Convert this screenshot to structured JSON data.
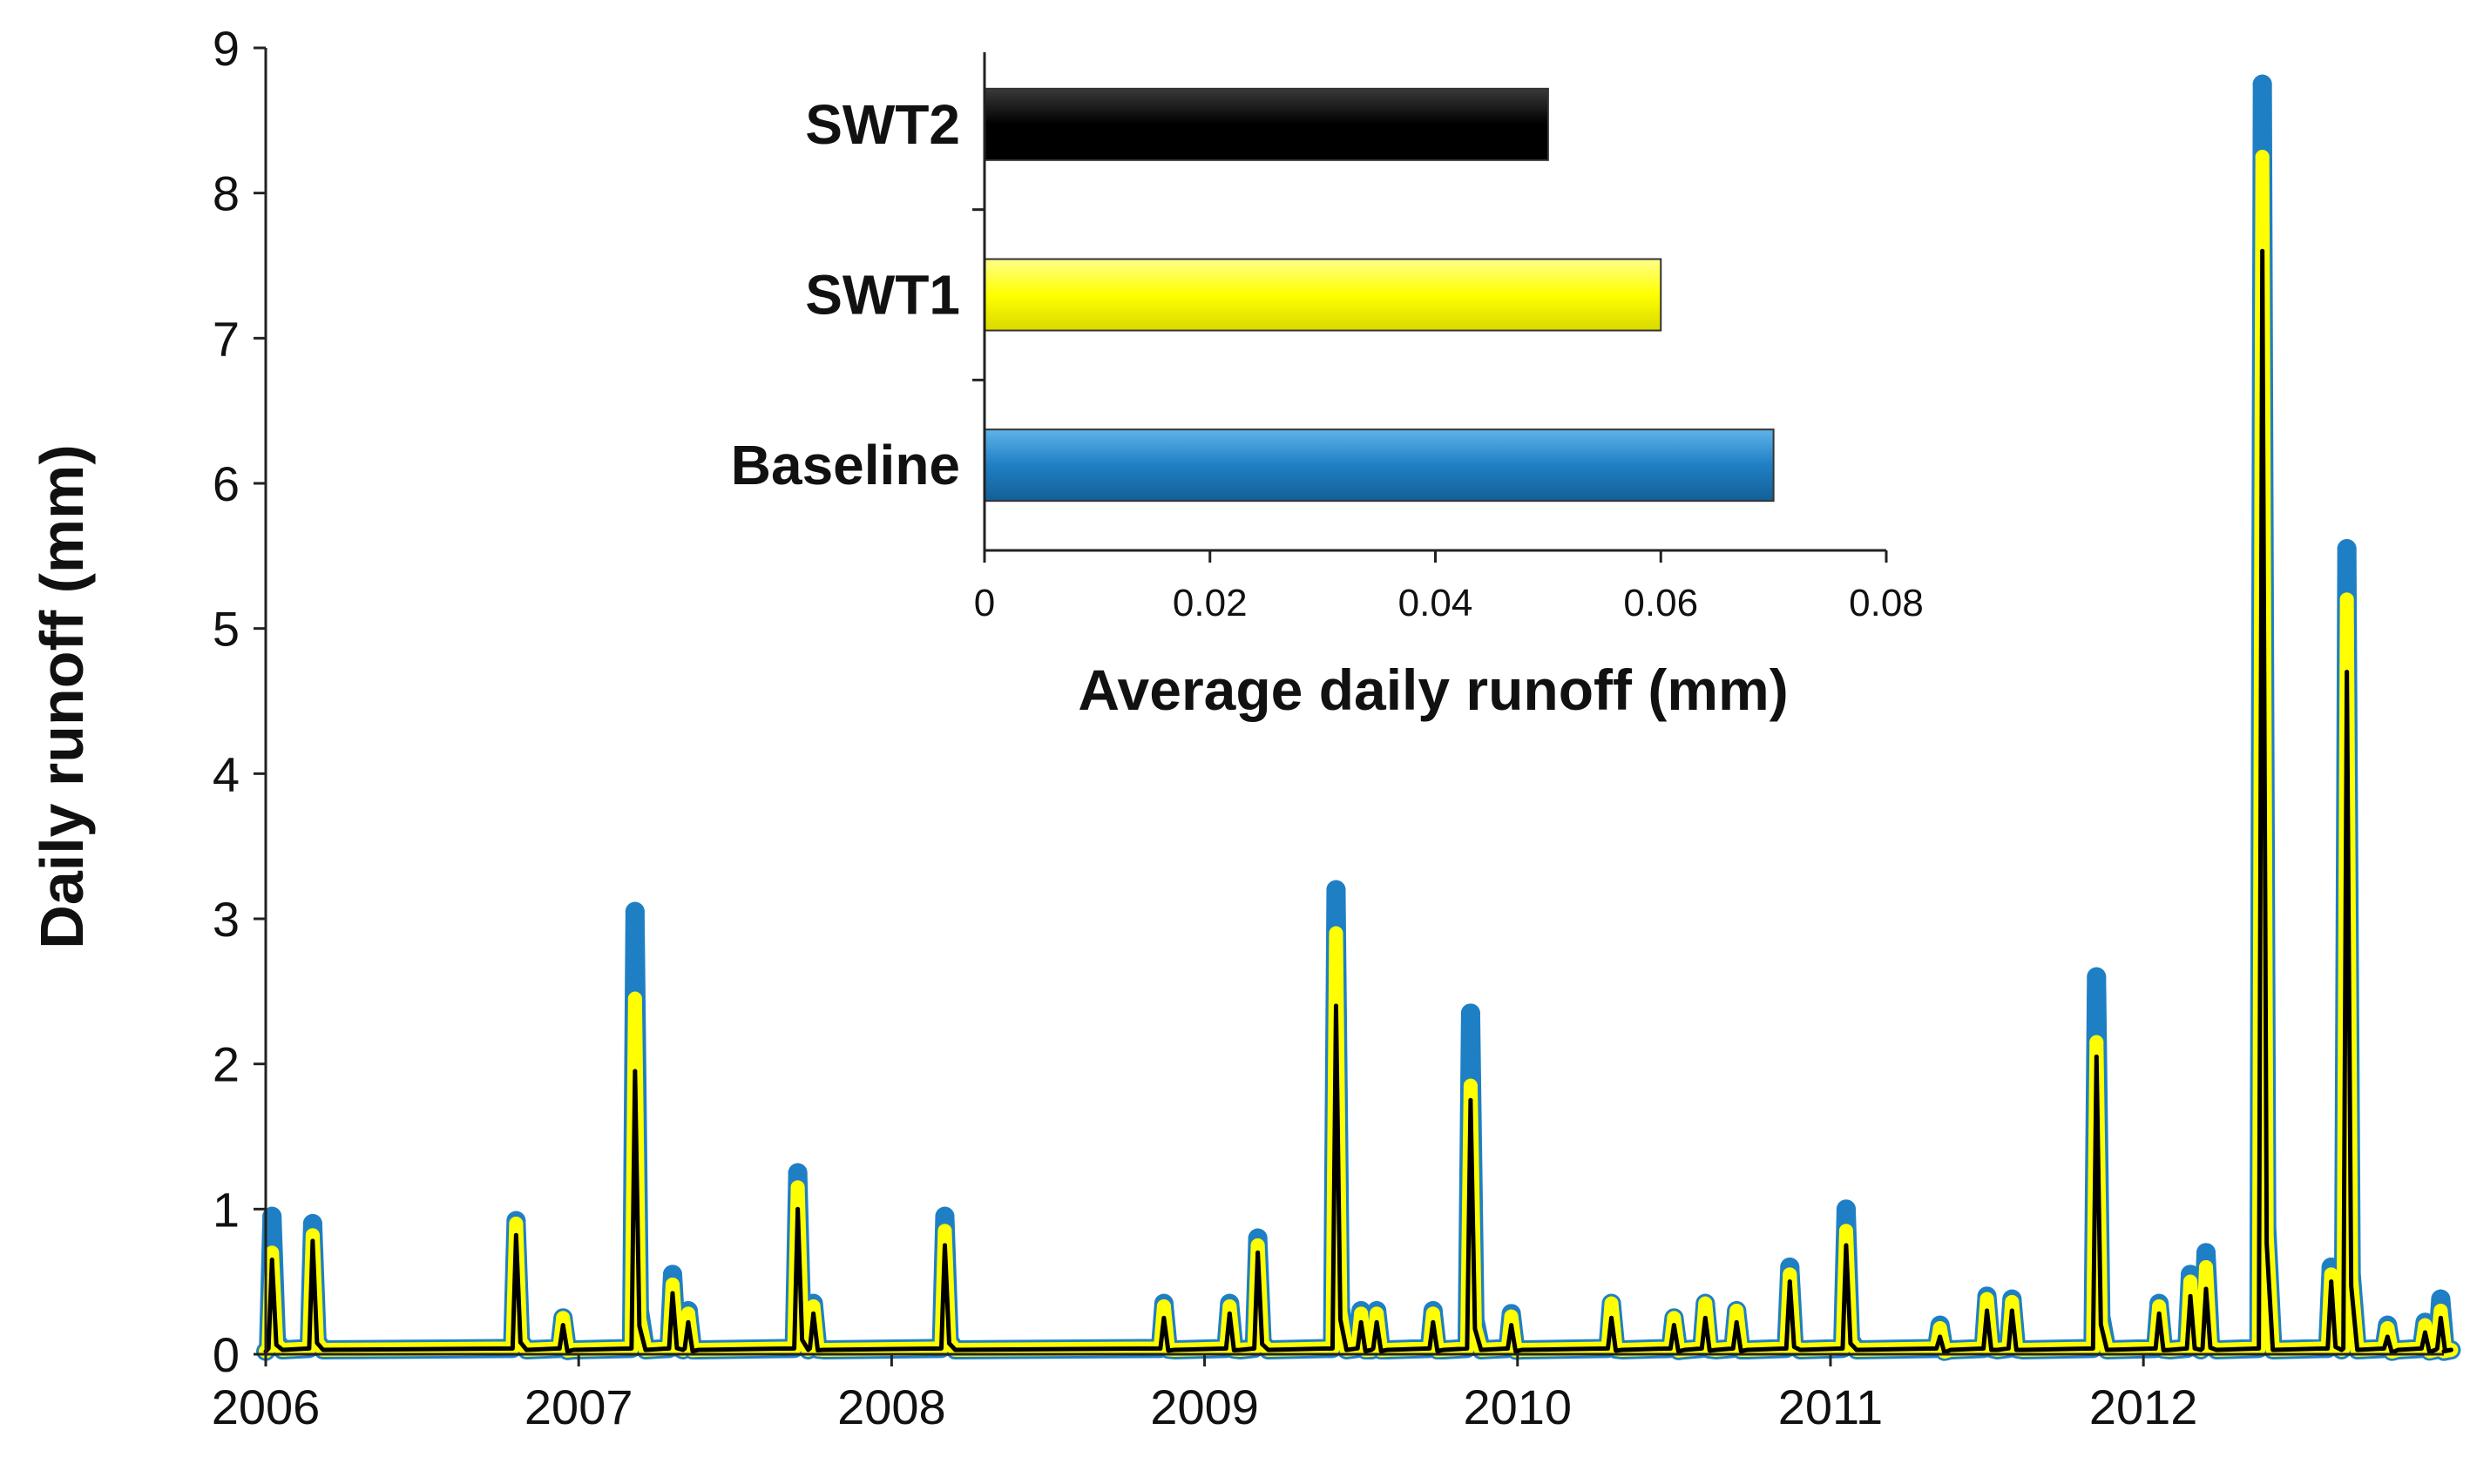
{
  "chart_data": [
    {
      "type": "line",
      "ylabel": "Daily runoff (mm)",
      "xlabel": "",
      "ylim": [
        0,
        9
      ],
      "yticks": [
        "0",
        "1",
        "2",
        "3",
        "4",
        "5",
        "6",
        "7",
        "8",
        "9"
      ],
      "xlim": [
        2006.0,
        2012.96
      ],
      "xticks": [
        "2006",
        "2007",
        "2008",
        "2009",
        "2010",
        "2011",
        "2012"
      ],
      "colors": {
        "Baseline": "#1f7fc4",
        "SWT1": "#ffff00",
        "SWT2": "#000000"
      },
      "series": [
        {
          "name": "Baseline",
          "peaks": [
            [
              2006.02,
              0.95
            ],
            [
              2006.15,
              0.9
            ],
            [
              2006.8,
              0.92
            ],
            [
              2006.95,
              0.25
            ],
            [
              2007.18,
              3.05
            ],
            [
              2007.3,
              0.55
            ],
            [
              2007.35,
              0.3
            ],
            [
              2007.7,
              1.25
            ],
            [
              2007.75,
              0.35
            ],
            [
              2008.17,
              0.95
            ],
            [
              2008.87,
              0.35
            ],
            [
              2009.08,
              0.35
            ],
            [
              2009.17,
              0.8
            ],
            [
              2009.42,
              3.2
            ],
            [
              2009.5,
              0.3
            ],
            [
              2009.55,
              0.3
            ],
            [
              2009.73,
              0.3
            ],
            [
              2009.85,
              2.35
            ],
            [
              2009.98,
              0.28
            ],
            [
              2010.3,
              0.35
            ],
            [
              2010.5,
              0.25
            ],
            [
              2010.6,
              0.35
            ],
            [
              2010.7,
              0.3
            ],
            [
              2010.87,
              0.6
            ],
            [
              2011.05,
              1.0
            ],
            [
              2011.35,
              0.2
            ],
            [
              2011.5,
              0.4
            ],
            [
              2011.58,
              0.38
            ],
            [
              2011.85,
              2.6
            ],
            [
              2012.05,
              0.35
            ],
            [
              2012.15,
              0.55
            ],
            [
              2012.2,
              0.7
            ],
            [
              2012.38,
              8.75
            ],
            [
              2012.6,
              0.6
            ],
            [
              2012.65,
              5.55
            ],
            [
              2012.78,
              0.2
            ],
            [
              2012.9,
              0.22
            ],
            [
              2012.95,
              0.38
            ]
          ]
        },
        {
          "name": "SWT1",
          "peaks": [
            [
              2006.02,
              0.7
            ],
            [
              2006.15,
              0.82
            ],
            [
              2006.8,
              0.9
            ],
            [
              2006.95,
              0.25
            ],
            [
              2007.18,
              2.45
            ],
            [
              2007.3,
              0.48
            ],
            [
              2007.35,
              0.28
            ],
            [
              2007.7,
              1.15
            ],
            [
              2007.75,
              0.33
            ],
            [
              2008.17,
              0.85
            ],
            [
              2008.87,
              0.33
            ],
            [
              2009.08,
              0.33
            ],
            [
              2009.17,
              0.75
            ],
            [
              2009.42,
              2.9
            ],
            [
              2009.5,
              0.28
            ],
            [
              2009.55,
              0.28
            ],
            [
              2009.73,
              0.28
            ],
            [
              2009.85,
              1.85
            ],
            [
              2009.98,
              0.26
            ],
            [
              2010.3,
              0.35
            ],
            [
              2010.5,
              0.25
            ],
            [
              2010.6,
              0.35
            ],
            [
              2010.7,
              0.3
            ],
            [
              2010.87,
              0.55
            ],
            [
              2011.05,
              0.85
            ],
            [
              2011.35,
              0.18
            ],
            [
              2011.5,
              0.38
            ],
            [
              2011.58,
              0.36
            ],
            [
              2011.85,
              2.15
            ],
            [
              2012.05,
              0.33
            ],
            [
              2012.15,
              0.5
            ],
            [
              2012.2,
              0.6
            ],
            [
              2012.38,
              8.25
            ],
            [
              2012.6,
              0.55
            ],
            [
              2012.65,
              5.2
            ],
            [
              2012.78,
              0.18
            ],
            [
              2012.9,
              0.2
            ],
            [
              2012.95,
              0.3
            ]
          ]
        },
        {
          "name": "SWT2",
          "peaks": [
            [
              2006.02,
              0.65
            ],
            [
              2006.15,
              0.78
            ],
            [
              2006.8,
              0.82
            ],
            [
              2006.95,
              0.2
            ],
            [
              2007.18,
              1.95
            ],
            [
              2007.3,
              0.42
            ],
            [
              2007.35,
              0.22
            ],
            [
              2007.7,
              1.0
            ],
            [
              2007.75,
              0.28
            ],
            [
              2008.17,
              0.75
            ],
            [
              2008.87,
              0.25
            ],
            [
              2009.08,
              0.28
            ],
            [
              2009.17,
              0.7
            ],
            [
              2009.42,
              2.4
            ],
            [
              2009.5,
              0.22
            ],
            [
              2009.55,
              0.22
            ],
            [
              2009.73,
              0.22
            ],
            [
              2009.85,
              1.75
            ],
            [
              2009.98,
              0.2
            ],
            [
              2010.3,
              0.25
            ],
            [
              2010.5,
              0.2
            ],
            [
              2010.6,
              0.25
            ],
            [
              2010.7,
              0.22
            ],
            [
              2010.87,
              0.5
            ],
            [
              2011.05,
              0.75
            ],
            [
              2011.35,
              0.12
            ],
            [
              2011.5,
              0.3
            ],
            [
              2011.58,
              0.3
            ],
            [
              2011.85,
              2.05
            ],
            [
              2012.05,
              0.28
            ],
            [
              2012.15,
              0.4
            ],
            [
              2012.2,
              0.45
            ],
            [
              2012.38,
              7.6
            ],
            [
              2012.6,
              0.5
            ],
            [
              2012.65,
              4.7
            ],
            [
              2012.78,
              0.12
            ],
            [
              2012.9,
              0.15
            ],
            [
              2012.95,
              0.25
            ]
          ]
        }
      ]
    },
    {
      "type": "bar",
      "orientation": "horizontal",
      "categories": [
        "SWT2",
        "SWT1",
        "Baseline"
      ],
      "values": [
        0.05,
        0.06,
        0.07
      ],
      "colors": [
        "#000000",
        "#ffff00",
        "#1f7fc4"
      ],
      "xlabel": "Average daily runoff (mm)",
      "xlim": [
        0,
        0.08
      ],
      "xticks": [
        "0",
        "0.02",
        "0.04",
        "0.06",
        "0.08"
      ]
    }
  ]
}
